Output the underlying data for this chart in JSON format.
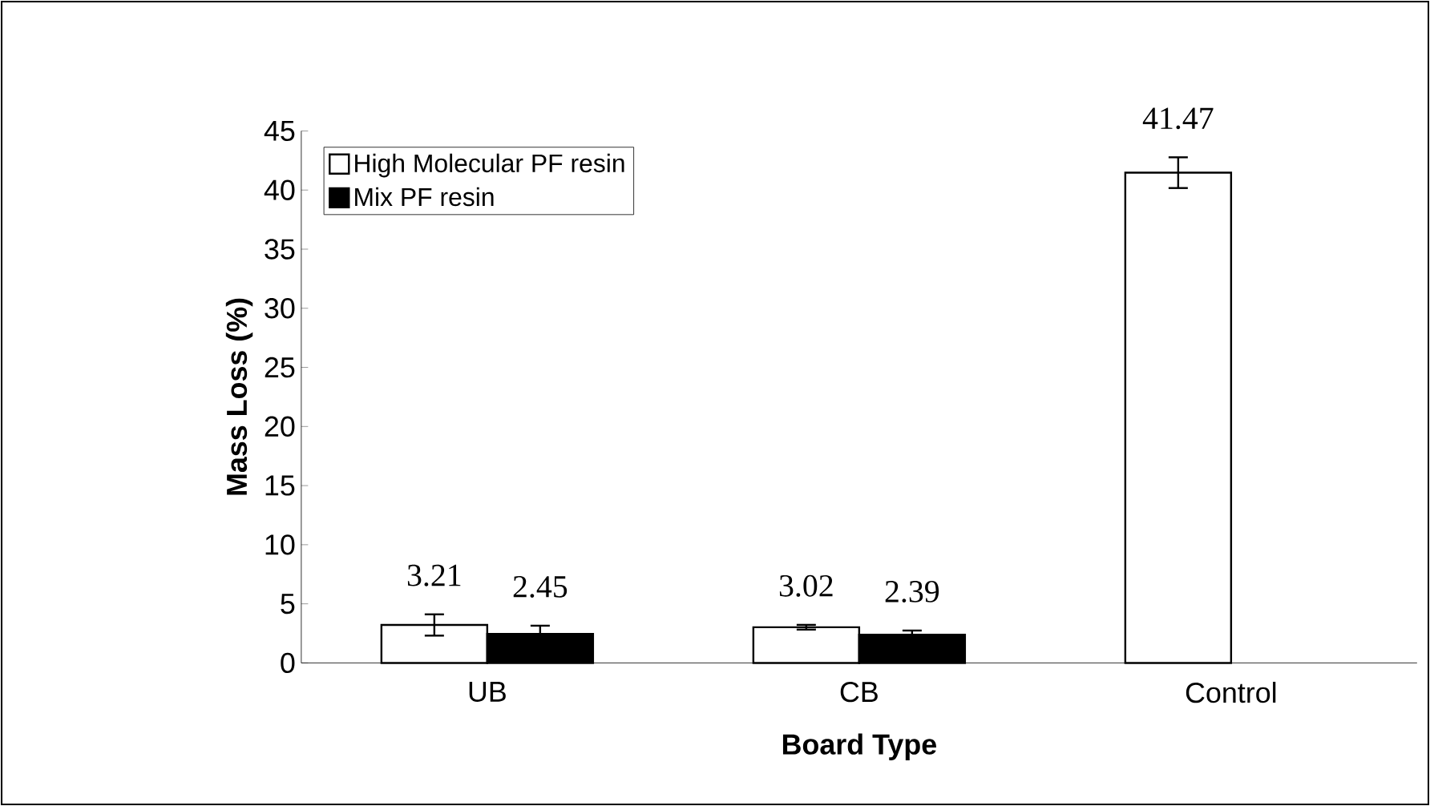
{
  "chart_data": {
    "type": "bar",
    "xlabel": "Board Type",
    "ylabel": "Mass Loss (%)",
    "categories": [
      "UB",
      "CB",
      "Control"
    ],
    "series": [
      {
        "name": "High Molecular PF resin",
        "color": "#ffffff",
        "values": [
          3.21,
          3.02,
          41.47
        ],
        "errors": [
          0.9,
          0.2,
          1.3
        ]
      },
      {
        "name": "Mix PF resin",
        "color": "#000000",
        "values": [
          2.45,
          2.39,
          null
        ],
        "errors": [
          0.7,
          0.35,
          null
        ]
      }
    ],
    "ylim": [
      0,
      45
    ],
    "yticks": [
      0,
      5,
      10,
      15,
      20,
      25,
      30,
      35,
      40,
      45
    ],
    "legend": "top left",
    "data_labels": true,
    "grid": false
  }
}
